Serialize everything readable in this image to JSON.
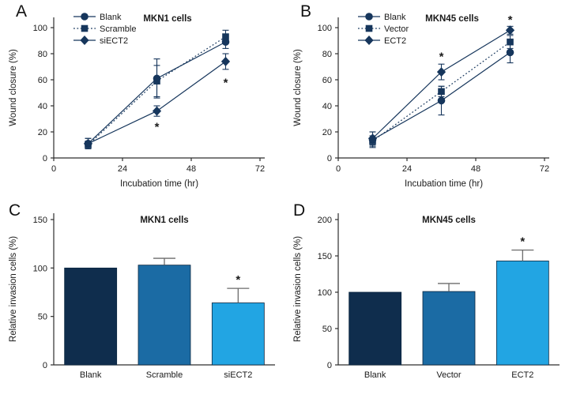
{
  "figure": {
    "background": "#ffffff",
    "text_color": "#1a1a1a",
    "axis_color": "#2e2e2e",
    "line_color": "#16365c",
    "errorbar_gray": "#6b6b6b"
  },
  "panels": [
    {
      "label": "A"
    },
    {
      "label": "B"
    },
    {
      "label": "C"
    },
    {
      "label": "D"
    }
  ],
  "chart_data": [
    {
      "type": "line",
      "panel": "A",
      "title": "MKN1 cells",
      "xlabel": "Incubation time (hr)",
      "ylabel": "Wound closure (%)",
      "x": [
        12,
        36,
        60
      ],
      "xlim": [
        0,
        74
      ],
      "xticks": [
        0,
        24,
        48,
        72
      ],
      "ylim": [
        0,
        100
      ],
      "yticks": [
        0,
        20,
        40,
        60,
        80,
        100
      ],
      "grid": false,
      "legend_position": "top-left",
      "series": [
        {
          "name": "Blank",
          "marker": "circle",
          "dashed": false,
          "values": [
            11,
            61,
            89
          ],
          "errors": [
            4,
            15,
            5
          ]
        },
        {
          "name": "Scramble",
          "marker": "square",
          "dashed": true,
          "values": [
            10,
            59,
            93
          ],
          "errors": [
            3,
            12,
            5
          ]
        },
        {
          "name": "siECT2",
          "marker": "diamond",
          "dashed": false,
          "values": [
            11,
            36,
            74
          ],
          "errors": [
            4,
            4,
            6
          ]
        }
      ],
      "annotations": [
        {
          "x": 36,
          "y": 24,
          "text": "*"
        },
        {
          "x": 60,
          "y": 58,
          "text": "*"
        }
      ]
    },
    {
      "type": "line",
      "panel": "B",
      "title": "MKN45 cells",
      "xlabel": "Incubation time (hr)",
      "ylabel": "Wound closure (%)",
      "x": [
        12,
        36,
        60
      ],
      "xlim": [
        0,
        74
      ],
      "xticks": [
        0,
        24,
        48,
        72
      ],
      "ylim": [
        0,
        100
      ],
      "yticks": [
        0,
        20,
        40,
        60,
        80,
        100
      ],
      "grid": false,
      "legend_position": "top-left",
      "series": [
        {
          "name": "Blank",
          "marker": "circle",
          "dashed": false,
          "values": [
            14,
            44,
            81
          ],
          "errors": [
            6,
            11,
            8
          ]
        },
        {
          "name": "Vector",
          "marker": "square",
          "dashed": true,
          "values": [
            13,
            51,
            89
          ],
          "errors": [
            4,
            4,
            5
          ]
        },
        {
          "name": "ECT2",
          "marker": "diamond",
          "dashed": false,
          "values": [
            15,
            66,
            98
          ],
          "errors": [
            5,
            6,
            3
          ]
        }
      ],
      "annotations": [
        {
          "x": 36,
          "y": 78,
          "text": "*"
        },
        {
          "x": 60,
          "y": 106,
          "text": "*"
        }
      ]
    },
    {
      "type": "bar",
      "panel": "C",
      "title": "MKN1 cells",
      "xlabel": "",
      "ylabel": "Relative invasion cells (%)",
      "categories": [
        "Blank",
        "Scramble",
        "siECT2"
      ],
      "values": [
        100,
        103,
        64
      ],
      "errors": [
        0,
        7,
        15
      ],
      "bar_colors": [
        "#0f2d4d",
        "#1b6ba4",
        "#22a5e3"
      ],
      "ylim": [
        0,
        150
      ],
      "yticks": [
        0,
        50,
        100,
        150
      ],
      "grid": false,
      "annotations": [
        {
          "category_index": 2,
          "text": "*"
        }
      ]
    },
    {
      "type": "bar",
      "panel": "D",
      "title": "MKN45 cells",
      "xlabel": "",
      "ylabel": "Relative invasion cells (%)",
      "categories": [
        "Blank",
        "Vector",
        "ECT2"
      ],
      "values": [
        100,
        101,
        143
      ],
      "errors": [
        0,
        11,
        15
      ],
      "bar_colors": [
        "#0f2d4d",
        "#1b6ba4",
        "#22a5e3"
      ],
      "ylim": [
        0,
        200
      ],
      "yticks": [
        0,
        50,
        100,
        150,
        200
      ],
      "grid": false,
      "annotations": [
        {
          "category_index": 2,
          "text": "*"
        }
      ]
    }
  ]
}
